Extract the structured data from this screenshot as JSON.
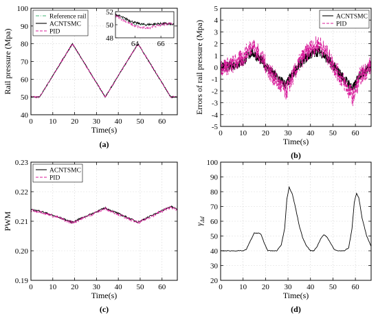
{
  "colors": {
    "reference": "#3cb371",
    "acntsmc": "#000000",
    "pid": "#d81b9a",
    "grid": "#d9d9d9"
  },
  "chart_data": [
    {
      "id": "a",
      "caption": "(a)",
      "type": "line",
      "xlabel": "Time(s)",
      "ylabel": "Rail pressure (Mpa)",
      "xlim": [
        0,
        67
      ],
      "ylim": [
        40,
        100
      ],
      "xticks": [
        0,
        10,
        20,
        30,
        40,
        50,
        60
      ],
      "yticks": [
        40,
        50,
        60,
        70,
        80,
        90,
        100
      ],
      "grid": true,
      "legend": {
        "position": "top-left",
        "entries": [
          "Reference rail",
          "ACNTSMC",
          "PID"
        ]
      },
      "series": [
        {
          "name": "Reference rail",
          "style": "dash-dot",
          "x": [
            0,
            4,
            19,
            34,
            49,
            64,
            67
          ],
          "y": [
            50,
            50,
            80,
            50,
            80,
            50,
            50
          ]
        },
        {
          "name": "ACNTSMC",
          "style": "solid",
          "x": [
            0,
            4,
            19,
            34,
            49,
            64,
            67
          ],
          "y": [
            50,
            50,
            80,
            50,
            80,
            50,
            50
          ]
        },
        {
          "name": "PID",
          "style": "dashed",
          "x": [
            0,
            4,
            19,
            34,
            49,
            64,
            67
          ],
          "y": [
            50,
            50,
            80,
            50,
            80,
            50,
            50
          ]
        }
      ],
      "inset": {
        "xlim": [
          62.5,
          67
        ],
        "ylim": [
          48,
          52
        ],
        "xticks": [
          64,
          66
        ],
        "yticks": [
          48,
          50,
          52
        ],
        "series": [
          {
            "name": "Reference rail",
            "x": [
              62.5,
              64,
              67
            ],
            "y": [
              51.5,
              50,
              50
            ]
          },
          {
            "name": "ACNTSMC",
            "x": [
              62.5,
              63.2,
              64,
              64.8,
              65.5,
              66.3,
              67
            ],
            "y": [
              51.6,
              51.0,
              50.3,
              50.0,
              50.1,
              50.2,
              50.0
            ]
          },
          {
            "name": "PID",
            "x": [
              62.5,
              63.2,
              64,
              64.6,
              65.2,
              66,
              66.7,
              67
            ],
            "y": [
              51.4,
              50.6,
              49.8,
              49.5,
              49.6,
              50.0,
              50.2,
              50.1
            ]
          }
        ]
      }
    },
    {
      "id": "b",
      "caption": "(b)",
      "type": "line",
      "xlabel": "Time(s)",
      "ylabel": "Errors of rail pressure (Mpa)",
      "xlim": [
        0,
        67
      ],
      "ylim": [
        -5,
        5
      ],
      "xticks": [
        0,
        10,
        20,
        30,
        40,
        50,
        60
      ],
      "yticks": [
        -5,
        -4,
        -3,
        -2,
        -1,
        0,
        1,
        2,
        3,
        4,
        5
      ],
      "grid": true,
      "legend": {
        "position": "top-right",
        "entries": [
          "ACNTSMC",
          "PID"
        ]
      },
      "series": [
        {
          "name": "ACNTSMC",
          "style": "solid",
          "x": [
            0,
            5,
            10,
            14,
            18,
            22,
            26,
            29,
            32,
            36,
            40,
            44,
            48,
            52,
            56,
            59,
            62,
            67
          ],
          "y": [
            0,
            0.1,
            0.5,
            1.3,
            0.6,
            -0.3,
            -1.0,
            -1.5,
            -0.6,
            0.5,
            1.1,
            1.4,
            0.6,
            -0.3,
            -1.2,
            -1.8,
            -0.6,
            0.1
          ]
        },
        {
          "name": "PID",
          "style": "dashed",
          "x": [
            0,
            5,
            10,
            14,
            18,
            22,
            26,
            29,
            32,
            36,
            40,
            44,
            48,
            52,
            56,
            59,
            62,
            67
          ],
          "y": [
            0,
            0.2,
            0.8,
            1.9,
            0.9,
            -0.4,
            -1.4,
            -2.1,
            -0.8,
            0.7,
            1.6,
            2.0,
            0.9,
            -0.4,
            -1.6,
            -2.5,
            -0.8,
            0.2
          ]
        }
      ]
    },
    {
      "id": "c",
      "caption": "(c)",
      "type": "line",
      "xlabel": "Time(s)",
      "ylabel": "PWM",
      "xlim": [
        0,
        67
      ],
      "ylim": [
        0.19,
        0.23
      ],
      "xticks": [
        0,
        10,
        20,
        30,
        40,
        50,
        60
      ],
      "yticks": [
        "0.19",
        "0.20",
        "0.21",
        "0.22",
        "0.23"
      ],
      "grid": true,
      "legend": {
        "position": "top-left",
        "entries": [
          "ACNTSMC",
          "PID"
        ]
      },
      "series": [
        {
          "name": "ACNTSMC",
          "style": "solid",
          "x": [
            0,
            4,
            19,
            34,
            49,
            64,
            67
          ],
          "y": [
            0.2138,
            0.2135,
            0.2097,
            0.2145,
            0.2097,
            0.215,
            0.214
          ]
        },
        {
          "name": "PID",
          "style": "dashed",
          "x": [
            0,
            4,
            19,
            34,
            49,
            64,
            67
          ],
          "y": [
            0.2136,
            0.2133,
            0.2095,
            0.2143,
            0.2095,
            0.2148,
            0.2138
          ]
        }
      ]
    },
    {
      "id": "d",
      "caption": "(d)",
      "type": "line",
      "xlabel": "Time(s)",
      "ylabel": "γ",
      "ylabel_sub": "Δd",
      "xlim": [
        0,
        67
      ],
      "ylim": [
        20,
        100
      ],
      "xticks": [
        0,
        10,
        20,
        30,
        40,
        50,
        60
      ],
      "yticks": [
        20,
        30,
        40,
        50,
        60,
        70,
        80,
        90,
        100
      ],
      "grid": true,
      "series": [
        {
          "name": "",
          "style": "solid",
          "x": [
            0,
            10,
            11.5,
            13,
            15,
            17,
            18,
            19.5,
            21,
            23,
            25,
            27,
            28.5,
            29.5,
            30.5,
            32,
            33.5,
            35,
            36.5,
            38,
            40,
            41.5,
            43,
            44.5,
            46,
            47.5,
            49,
            50.5,
            52,
            55,
            57,
            58.5,
            59.5,
            60.5,
            61.5,
            63,
            65,
            67
          ],
          "y": [
            40,
            40,
            41,
            46,
            52,
            52,
            51,
            45,
            40,
            40,
            40,
            44,
            55,
            75,
            83,
            78,
            68,
            57,
            49,
            44,
            40,
            40,
            43,
            48,
            51,
            49,
            45,
            41,
            40,
            40,
            42,
            55,
            73,
            79,
            76,
            62,
            50,
            43
          ]
        }
      ]
    }
  ]
}
